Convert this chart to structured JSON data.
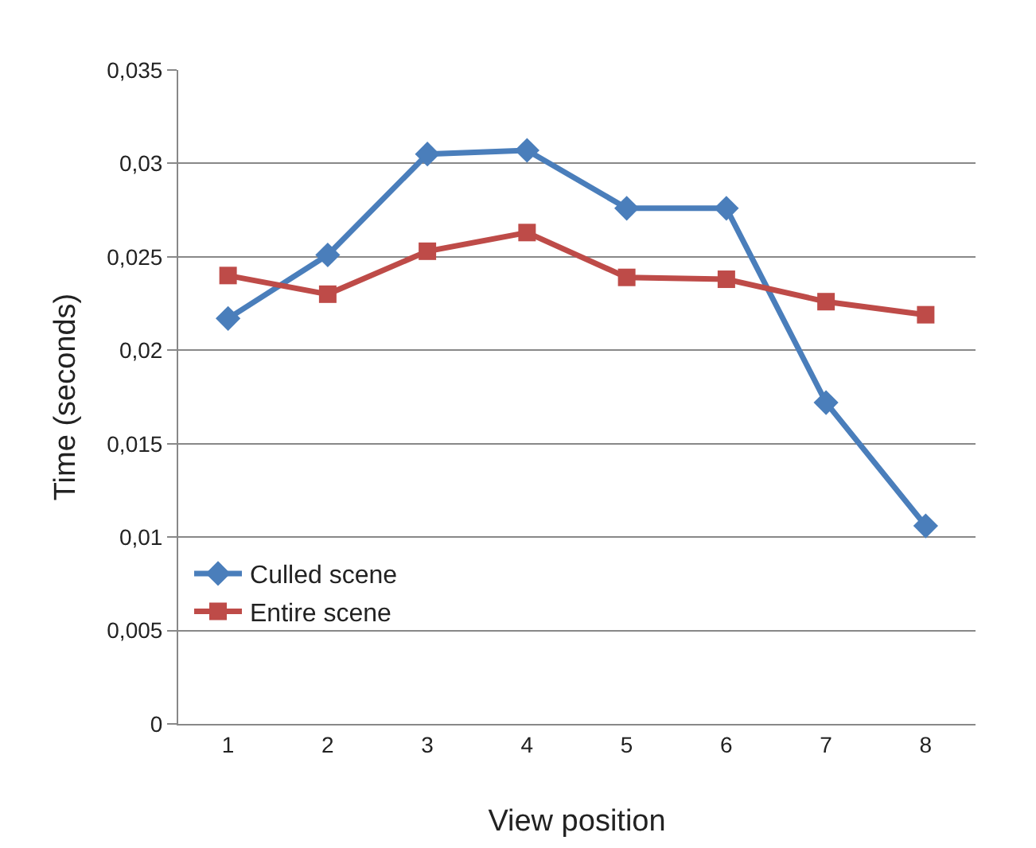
{
  "chart_data": {
    "type": "line",
    "xlabel": "View position",
    "ylabel": "Time (seconds)",
    "categories": [
      "1",
      "2",
      "3",
      "4",
      "5",
      "6",
      "7",
      "8"
    ],
    "series": [
      {
        "name": "Culled scene",
        "color": "#4a7ebb",
        "marker": "diamond",
        "values": [
          0.0217,
          0.0251,
          0.0305,
          0.0307,
          0.0276,
          0.0276,
          0.0172,
          0.0106
        ]
      },
      {
        "name": "Entire scene",
        "color": "#be4b48",
        "marker": "square",
        "values": [
          0.024,
          0.023,
          0.0253,
          0.0263,
          0.0239,
          0.0238,
          0.0226,
          0.0219
        ]
      }
    ],
    "ylim": [
      0,
      0.035
    ],
    "yticks": [
      {
        "value": 0,
        "label": "0"
      },
      {
        "value": 0.005,
        "label": "0,005"
      },
      {
        "value": 0.01,
        "label": "0,01"
      },
      {
        "value": 0.015,
        "label": "0,015"
      },
      {
        "value": 0.02,
        "label": "0,02"
      },
      {
        "value": 0.025,
        "label": "0,025"
      },
      {
        "value": 0.03,
        "label": "0,03"
      },
      {
        "value": 0.035,
        "label": "0,035"
      }
    ],
    "grid": "y",
    "legend": "bottom left",
    "line_style": "solid"
  }
}
